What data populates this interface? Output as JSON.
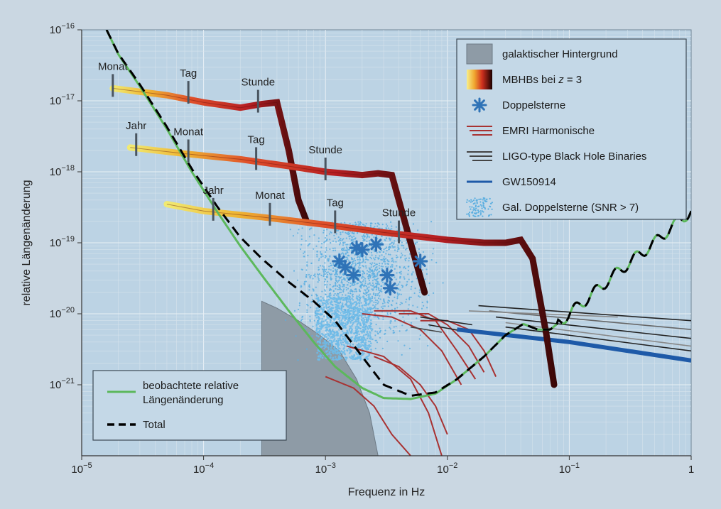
{
  "chart_data": {
    "type": "line",
    "xlabel": "Frequenz in Hz",
    "ylabel": "relative Längenänderung",
    "x_scale": "log",
    "y_scale": "log",
    "xlim": [
      1e-05,
      1
    ],
    "ylim": [
      1e-22,
      1e-16
    ],
    "grid": true,
    "x_ticks": [
      {
        "value": 1e-05,
        "base": "10",
        "exp": "−5"
      },
      {
        "value": 0.0001,
        "base": "10",
        "exp": "−4"
      },
      {
        "value": 0.001,
        "base": "10",
        "exp": "−3"
      },
      {
        "value": 0.01,
        "base": "10",
        "exp": "−2"
      },
      {
        "value": 0.1,
        "base": "10",
        "exp": "−1"
      },
      {
        "value": 1,
        "label": "1"
      }
    ],
    "y_ticks": [
      {
        "value": 1e-16,
        "base": "10",
        "exp": "−16"
      },
      {
        "value": 1e-17,
        "base": "10",
        "exp": "−17"
      },
      {
        "value": 1e-18,
        "base": "10",
        "exp": "−18"
      },
      {
        "value": 1e-19,
        "base": "10",
        "exp": "−19"
      },
      {
        "value": 1e-20,
        "base": "10",
        "exp": "−20"
      },
      {
        "value": 1e-21,
        "base": "10",
        "exp": "−21"
      }
    ],
    "legend_top_right": [
      {
        "name": "galaktischer Hintergrund",
        "kind": "area",
        "color": "#8e9ba6"
      },
      {
        "name": "MBHBs bei z = 3",
        "kind": "gradient",
        "prefix": "MBHBs bei ",
        "italic": "z",
        "suffix": " = 3"
      },
      {
        "name": "Doppelsterne",
        "kind": "star",
        "color": "#2f73b7"
      },
      {
        "name": "EMRI Harmonische",
        "kind": "lines",
        "color": "#a83232"
      },
      {
        "name": "LIGO-type Black Hole Binaries",
        "kind": "lines",
        "color": "#444444"
      },
      {
        "name": "GW150914",
        "kind": "line",
        "color": "#1e5aa8"
      },
      {
        "name": "Gal. Doppelsterne (SNR > 7)",
        "kind": "dots",
        "color": "#5aaee0"
      }
    ],
    "legend_bottom_left": [
      {
        "name": "beobachtete relative",
        "name2": "Längenänderung",
        "kind": "line",
        "color": "#5cb85c"
      },
      {
        "name": "Total",
        "kind": "dashed",
        "color": "#000000"
      }
    ],
    "series": [
      {
        "name": "beobachtete relative Längenänderung",
        "color": "#5cb85c",
        "x": [
          1.6e-05,
          2e-05,
          3e-05,
          5e-05,
          8e-05,
          0.00013,
          0.0002,
          0.0003,
          0.0005,
          0.0008,
          0.0012,
          0.002,
          0.003,
          0.005,
          0.008,
          0.012,
          0.02,
          0.03,
          0.042,
          0.055,
          0.07,
          0.1,
          0.15,
          0.2,
          0.3,
          0.5,
          0.7,
          1
        ],
        "y": [
          1e-16,
          4.5e-17,
          1.6e-17,
          4e-18,
          1e-18,
          2.7e-19,
          9e-20,
          3.5e-20,
          1.1e-20,
          4e-21,
          1.8e-21,
          9e-22,
          6.5e-22,
          6.3e-22,
          7.5e-22,
          1.2e-21,
          2.5e-21,
          5e-21,
          7.2e-21,
          6e-21,
          6e-21,
          1e-20,
          1.8e-20,
          2.8e-20,
          5e-20,
          1e-19,
          1.7e-19,
          2.8e-19
        ]
      },
      {
        "name": "Total",
        "color": "#000000",
        "x": [
          1.6e-05,
          2e-05,
          3e-05,
          5e-05,
          8e-05,
          0.00013,
          0.0002,
          0.0003,
          0.0005,
          0.0008,
          0.0012,
          0.002,
          0.003,
          0.005,
          0.008,
          0.012,
          0.02,
          0.03,
          0.042,
          0.055,
          0.07,
          0.1,
          0.15,
          0.2,
          0.3,
          0.5,
          0.7,
          1
        ],
        "y": [
          1e-16,
          4.6e-17,
          1.7e-17,
          4.3e-18,
          1.1e-18,
          3.2e-19,
          1.2e-19,
          6e-20,
          2.8e-20,
          1.5e-20,
          8e-21,
          2.5e-21,
          1e-21,
          7e-22,
          7.8e-22,
          1.2e-21,
          2.5e-21,
          5e-21,
          7.2e-21,
          6e-21,
          6e-21,
          1e-20,
          1.8e-20,
          2.8e-20,
          5e-20,
          1e-19,
          1.7e-19,
          2.8e-19
        ]
      },
      {
        "name": "galaktischer Hintergrund",
        "color": "#8e9ba6",
        "x": [
          0.0003,
          0.0003,
          0.0004,
          0.0006,
          0.0009,
          0.0013,
          0.0018,
          0.0023,
          0.0027,
          0.0027
        ],
        "y": [
          1e-22,
          1.5e-20,
          1.2e-20,
          8e-21,
          5e-21,
          3e-21,
          1.2e-21,
          4e-22,
          1e-22,
          1e-22
        ]
      },
      {
        "name": "MBHB 1",
        "x": [
          1.8e-05,
          5e-05,
          0.0001,
          0.0002,
          0.0003,
          0.0004,
          0.0005,
          0.0006,
          0.0007
        ],
        "y": [
          1.5e-17,
          1.2e-17,
          9.5e-18,
          8e-18,
          9e-18,
          9.5e-18,
          2e-18,
          4e-19,
          2e-19
        ]
      },
      {
        "name": "MBHB 2",
        "x": [
          2.5e-05,
          7e-05,
          0.0002,
          0.0005,
          0.001,
          0.002,
          0.0027,
          0.0035,
          0.005,
          0.0065
        ],
        "y": [
          2.2e-18,
          1.8e-18,
          1.5e-18,
          1.2e-18,
          1e-18,
          9e-19,
          9.5e-19,
          9e-19,
          1e-19,
          2e-20
        ]
      },
      {
        "name": "MBHB 3",
        "x": [
          5e-05,
          0.0001,
          0.0003,
          0.001,
          0.003,
          0.01,
          0.02,
          0.03,
          0.04,
          0.05,
          0.065,
          0.075
        ],
        "y": [
          3.5e-19,
          2.8e-19,
          2.3e-19,
          1.8e-19,
          1.4e-19,
          1.1e-19,
          1e-19,
          1e-19,
          1.1e-19,
          6e-20,
          5e-21,
          1e-21
        ]
      },
      {
        "name": "GW150914",
        "color": "#1e5aa8",
        "x": [
          0.012,
          0.1,
          1
        ],
        "y": [
          6e-21,
          4e-21,
          2.2e-21
        ]
      }
    ],
    "emri": [
      {
        "x": [
          0.0025,
          0.004,
          0.006,
          0.008,
          0.01
        ],
        "y": [
          2.5e-21,
          1.8e-21,
          1e-21,
          5e-22,
          2e-22
        ]
      },
      {
        "x": [
          0.002,
          0.0035,
          0.006,
          0.009,
          0.013
        ],
        "y": [
          1e-20,
          9e-21,
          6e-21,
          3e-21,
          1e-21
        ]
      },
      {
        "x": [
          0.0025,
          0.005,
          0.008,
          0.012,
          0.017
        ],
        "y": [
          1.1e-20,
          1.1e-20,
          8e-21,
          3e-21,
          1.2e-21
        ]
      },
      {
        "x": [
          0.004,
          0.007,
          0.01,
          0.015,
          0.02
        ],
        "y": [
          1e-20,
          1e-20,
          7e-21,
          3.5e-21,
          1.5e-21
        ]
      },
      {
        "x": [
          0.006,
          0.01,
          0.015,
          0.02,
          0.025
        ],
        "y": [
          8e-21,
          8e-21,
          6e-21,
          3e-21,
          1.3e-21
        ]
      },
      {
        "x": [
          0.001,
          0.0017,
          0.0025,
          0.0035,
          0.005
        ],
        "y": [
          1.3e-21,
          9e-22,
          5e-22,
          2e-22,
          1e-22
        ]
      },
      {
        "x": [
          0.0015,
          0.003,
          0.005,
          0.007,
          0.009
        ],
        "y": [
          3.5e-21,
          2.5e-21,
          1.2e-21,
          4e-22,
          1e-22
        ]
      }
    ],
    "ligo": [
      {
        "x": [
          0.018,
          1
        ],
        "y": [
          1.3e-20,
          8e-21
        ],
        "color": "#222222"
      },
      {
        "x": [
          0.022,
          1
        ],
        "y": [
          1.1e-20,
          6e-21
        ],
        "color": "#666666"
      },
      {
        "x": [
          0.025,
          1
        ],
        "y": [
          9e-21,
          4.5e-21
        ],
        "color": "#222222"
      },
      {
        "x": [
          0.03,
          1
        ],
        "y": [
          7.5e-21,
          3.5e-21
        ],
        "color": "#888888"
      },
      {
        "x": [
          0.03,
          1
        ],
        "y": [
          6.5e-21,
          3e-21
        ],
        "color": "#222222"
      },
      {
        "x": [
          0.015,
          0.25
        ],
        "y": [
          1.1e-20,
          9e-21
        ],
        "color": "#888888"
      },
      {
        "x": [
          0.006,
          0.016
        ],
        "y": [
          9e-21,
          7e-21
        ],
        "color": "#222222"
      },
      {
        "x": [
          0.007,
          0.015
        ],
        "y": [
          7e-21,
          5.5e-21
        ],
        "color": "#222222"
      },
      {
        "x": [
          0.005,
          0.009
        ],
        "y": [
          6.5e-21,
          5.5e-21
        ],
        "color": "#444444"
      }
    ],
    "doppelsterne": [
      {
        "x": 0.0018,
        "y": 8.5e-20
      },
      {
        "x": 0.002,
        "y": 8e-20
      },
      {
        "x": 0.0026,
        "y": 9.5e-20
      },
      {
        "x": 0.0013,
        "y": 5.5e-20
      },
      {
        "x": 0.00145,
        "y": 4.5e-20
      },
      {
        "x": 0.0017,
        "y": 3.5e-20
      },
      {
        "x": 0.0032,
        "y": 3.5e-20
      },
      {
        "x": 0.0034,
        "y": 2.3e-20
      },
      {
        "x": 0.006,
        "y": 5.5e-20
      }
    ],
    "annotations": [
      {
        "text": "Monat",
        "x": 1.8e-05,
        "y": 1.5e-17
      },
      {
        "text": "Tag",
        "x": 7.5e-05,
        "y": 1.2e-17
      },
      {
        "text": "Stunde",
        "x": 0.00028,
        "y": 9e-18
      },
      {
        "text": "Jahr",
        "x": 2.8e-05,
        "y": 2.2e-18
      },
      {
        "text": "Monat",
        "x": 7.5e-05,
        "y": 1.8e-18
      },
      {
        "text": "Tag",
        "x": 0.00027,
        "y": 1.4e-18
      },
      {
        "text": "Stunde",
        "x": 0.001,
        "y": 1e-18
      },
      {
        "text": "Jahr",
        "x": 0.00012,
        "y": 2.7e-19
      },
      {
        "text": "Monat",
        "x": 0.00035,
        "y": 2.3e-19
      },
      {
        "text": "Tag",
        "x": 0.0012,
        "y": 1.8e-19
      },
      {
        "text": "Stunde",
        "x": 0.004,
        "y": 1.3e-19
      }
    ]
  }
}
